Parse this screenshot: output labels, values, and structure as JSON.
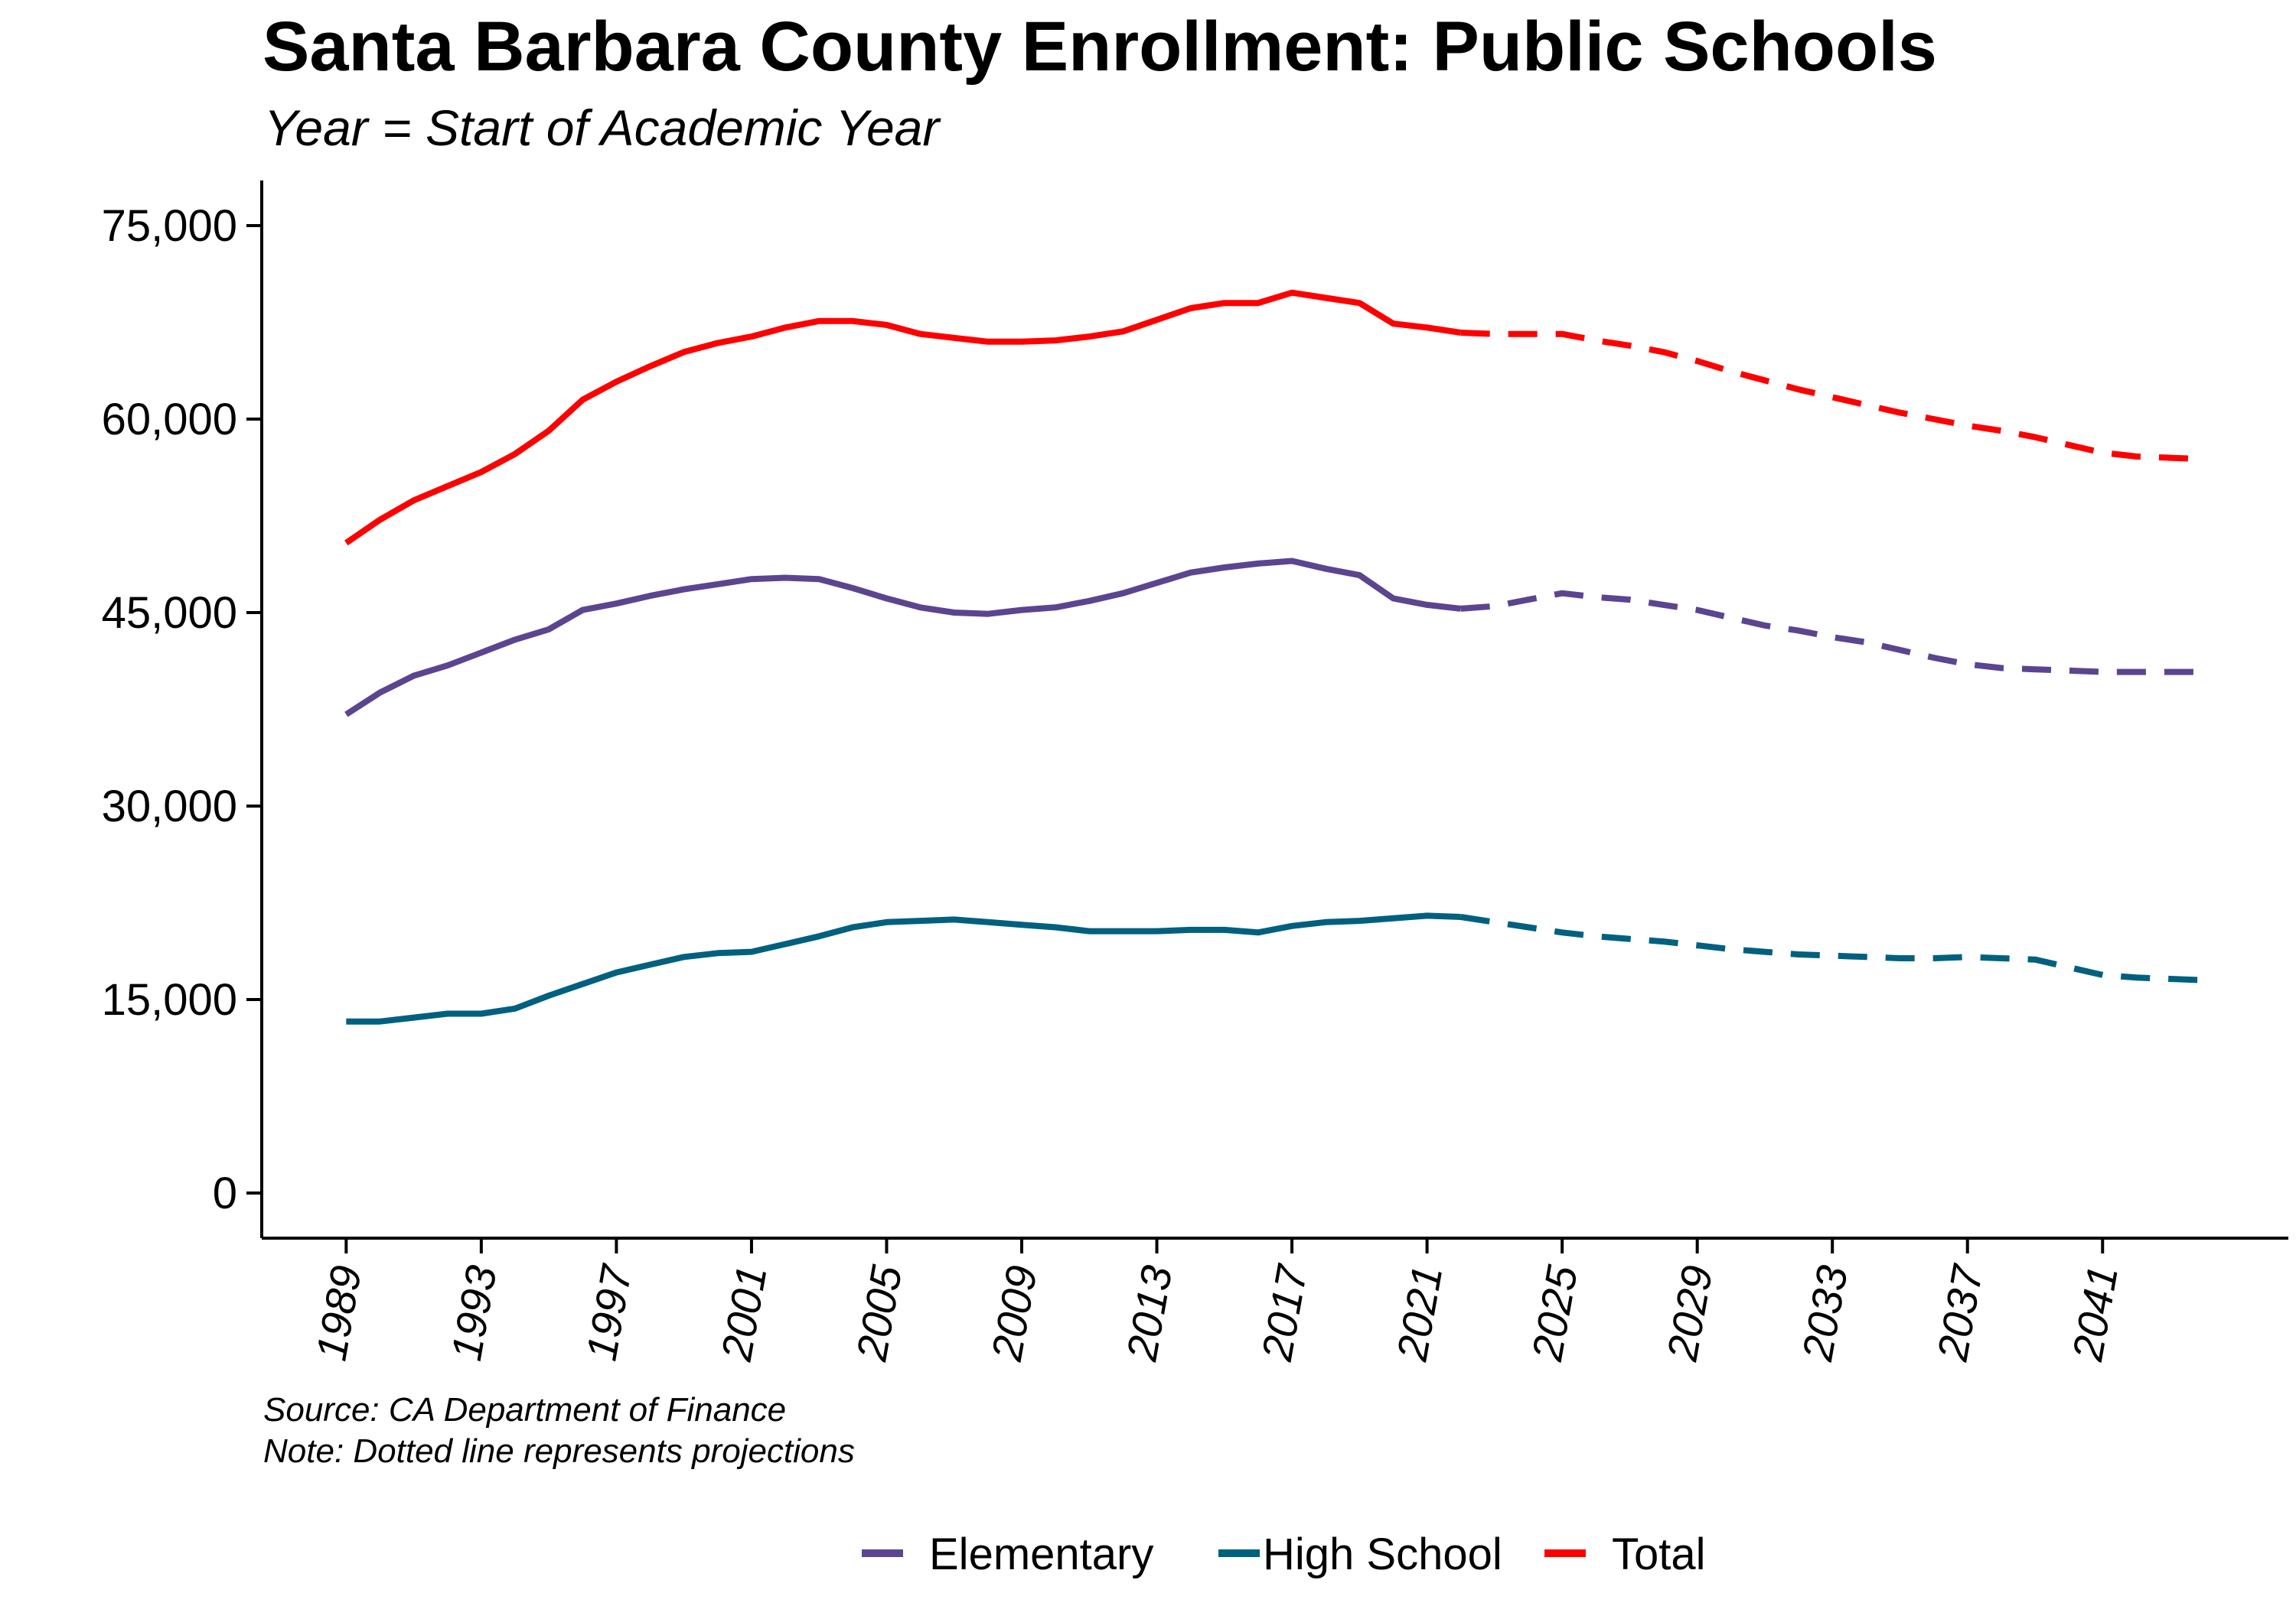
{
  "chart_data": {
    "type": "line",
    "title": "Santa Barbara County Enrollment: Public Schools",
    "subtitle": "Year = Start of Academic Year",
    "xlabel": "",
    "ylabel": "",
    "xlim": [
      1986.5,
      2046.5
    ],
    "ylim": [
      -3500,
      78500
    ],
    "y_ticks": [
      0,
      15000,
      30000,
      45000,
      60000,
      75000
    ],
    "y_tick_labels": [
      "0",
      "15,000",
      "30,000",
      "45,000",
      "60,000",
      "75,000"
    ],
    "x_ticks": [
      1989,
      1993,
      1997,
      2001,
      2005,
      2009,
      2013,
      2017,
      2021,
      2025,
      2029,
      2033,
      2037,
      2041
    ],
    "x_tick_labels": [
      "1989",
      "1993",
      "1997",
      "2001",
      "2005",
      "2009",
      "2013",
      "2017",
      "2021",
      "2025",
      "2029",
      "2033",
      "2037",
      "2041"
    ],
    "grid": false,
    "legend_position": "bottom",
    "projection_start": 2022,
    "x": [
      1989,
      1990,
      1991,
      1992,
      1993,
      1994,
      1995,
      1996,
      1997,
      1998,
      1999,
      2000,
      2001,
      2002,
      2003,
      2004,
      2005,
      2006,
      2007,
      2008,
      2009,
      2010,
      2011,
      2012,
      2013,
      2014,
      2015,
      2016,
      2017,
      2018,
      2019,
      2020,
      2021,
      2022,
      2023,
      2024,
      2025,
      2026,
      2027,
      2028,
      2029,
      2030,
      2031,
      2032,
      2033,
      2034,
      2035,
      2036,
      2037,
      2038,
      2039,
      2040,
      2041,
      2042,
      2043,
      2044
    ],
    "series": [
      {
        "name": "Elementary",
        "color": "#5b4590",
        "values": [
          37100,
          38800,
          40100,
          40900,
          41900,
          42900,
          43700,
          45200,
          45700,
          46300,
          46800,
          47200,
          47600,
          47700,
          47600,
          46900,
          46100,
          45400,
          45000,
          44900,
          45200,
          45400,
          45900,
          46500,
          47300,
          48100,
          48500,
          48800,
          49000,
          48400,
          47900,
          46100,
          45600,
          45300,
          45500,
          46000,
          46500,
          46200,
          46000,
          45600,
          45200,
          44600,
          44000,
          43600,
          43100,
          42700,
          42100,
          41500,
          41000,
          40700,
          40600,
          40500,
          40400,
          40400,
          40400,
          40400
        ]
      },
      {
        "name": "High School",
        "color": "#00607f",
        "values": [
          13300,
          13300,
          13600,
          13900,
          13900,
          14300,
          15300,
          16200,
          17100,
          17700,
          18300,
          18600,
          18700,
          19300,
          19900,
          20600,
          21000,
          21100,
          21200,
          21000,
          20800,
          20600,
          20300,
          20300,
          20300,
          20400,
          20400,
          20200,
          20700,
          21000,
          21100,
          21300,
          21500,
          21400,
          21000,
          20600,
          20200,
          19900,
          19700,
          19500,
          19200,
          18900,
          18700,
          18500,
          18400,
          18300,
          18200,
          18200,
          18300,
          18200,
          18100,
          17500,
          16900,
          16700,
          16600,
          16500
        ]
      },
      {
        "name": "Total",
        "color": "#ff0000",
        "values": [
          50400,
          52200,
          53700,
          54800,
          55900,
          57300,
          59100,
          61500,
          62900,
          64100,
          65200,
          65900,
          66400,
          67100,
          67600,
          67600,
          67300,
          66600,
          66300,
          66000,
          66000,
          66100,
          66400,
          66800,
          67700,
          68600,
          69000,
          69000,
          69800,
          69400,
          69000,
          67400,
          67100,
          66700,
          66600,
          66600,
          66600,
          66100,
          65700,
          65200,
          64500,
          63700,
          63000,
          62300,
          61700,
          61100,
          60500,
          60000,
          59500,
          59100,
          58600,
          58000,
          57400,
          57100,
          57000,
          56900
        ]
      }
    ],
    "notes": [
      "Source: CA Department of Finance",
      "Note: Dotted line represents projections"
    ]
  }
}
